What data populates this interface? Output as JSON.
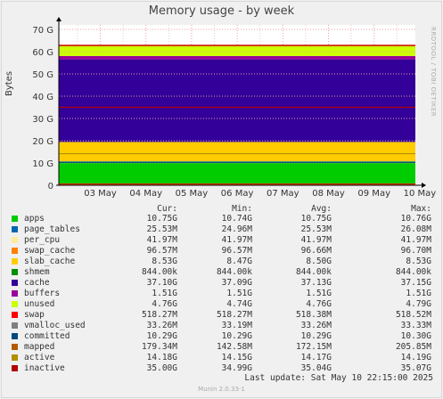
{
  "chart_data": {
    "type": "area",
    "title": "Memory usage - by week",
    "ylabel": "Bytes",
    "yticks": [
      "0",
      "10 G",
      "20 G",
      "30 G",
      "40 G",
      "50 G",
      "60 G",
      "70 G"
    ],
    "ylim": [
      0,
      72
    ],
    "xticks": [
      "03 May",
      "04 May",
      "05 May",
      "06 May",
      "07 May",
      "08 May",
      "09 May",
      "10 May"
    ],
    "stack": [
      {
        "name": "apps",
        "value": 10.75,
        "color": "#00cc00"
      },
      {
        "name": "page_tables",
        "value": 0.02553,
        "color": "#0066b3"
      },
      {
        "name": "per_cpu",
        "value": 0.04197,
        "color": "#ffeb99"
      },
      {
        "name": "swap_cache",
        "value": 0.09657,
        "color": "#ff8000"
      },
      {
        "name": "slab_cache",
        "value": 8.53,
        "color": "#ffcc00"
      },
      {
        "name": "cache",
        "value": 37.1,
        "color": "#330099"
      },
      {
        "name": "buffers",
        "value": 1.51,
        "color": "#990099"
      },
      {
        "name": "unused",
        "value": 4.76,
        "color": "#ccff00"
      }
    ],
    "lines": [
      {
        "name": "swap",
        "value": 0.518,
        "color": "#ff0000"
      },
      {
        "name": "committed",
        "value": 10.29,
        "color": "#00487d"
      },
      {
        "name": "mapped",
        "value": 0.179,
        "color": "#b35a00"
      },
      {
        "name": "active",
        "value": 14.18,
        "color": "#b38f00"
      },
      {
        "name": "inactive",
        "value": 35.0,
        "color": "#b30000"
      }
    ]
  },
  "side_text": "RRDTOOL / TOBI OETIKER",
  "legend": {
    "headers": {
      "cur": "Cur:",
      "min": "Min:",
      "avg": "Avg:",
      "max": "Max:"
    },
    "rows": [
      {
        "name": "apps",
        "color": "#00cc00",
        "cur": "10.75G",
        "min": "10.74G",
        "avg": "10.75G",
        "max": "10.76G"
      },
      {
        "name": "page_tables",
        "color": "#0066b3",
        "cur": "25.53M",
        "min": "24.96M",
        "avg": "25.53M",
        "max": "26.08M"
      },
      {
        "name": "per_cpu",
        "color": "#ffeb99",
        "cur": "41.97M",
        "min": "41.97M",
        "avg": "41.97M",
        "max": "41.97M"
      },
      {
        "name": "swap_cache",
        "color": "#ff8000",
        "cur": "96.57M",
        "min": "96.57M",
        "avg": "96.66M",
        "max": "96.70M"
      },
      {
        "name": "slab_cache",
        "color": "#ffcc00",
        "cur": "8.53G",
        "min": "8.47G",
        "avg": "8.50G",
        "max": "8.53G"
      },
      {
        "name": "shmem",
        "color": "#008f00",
        "cur": "844.00k",
        "min": "844.00k",
        "avg": "844.00k",
        "max": "844.00k"
      },
      {
        "name": "cache",
        "color": "#330099",
        "cur": "37.10G",
        "min": "37.09G",
        "avg": "37.13G",
        "max": "37.15G"
      },
      {
        "name": "buffers",
        "color": "#990099",
        "cur": "1.51G",
        "min": "1.51G",
        "avg": "1.51G",
        "max": "1.51G"
      },
      {
        "name": "unused",
        "color": "#ccff00",
        "cur": "4.76G",
        "min": "4.74G",
        "avg": "4.76G",
        "max": "4.79G"
      },
      {
        "name": "swap",
        "color": "#ff0000",
        "cur": "518.27M",
        "min": "518.27M",
        "avg": "518.38M",
        "max": "518.52M"
      },
      {
        "name": "vmalloc_used",
        "color": "#808080",
        "cur": "33.26M",
        "min": "33.19M",
        "avg": "33.26M",
        "max": "33.33M"
      },
      {
        "name": "committed",
        "color": "#00487d",
        "cur": "10.29G",
        "min": "10.29G",
        "avg": "10.29G",
        "max": "10.30G"
      },
      {
        "name": "mapped",
        "color": "#b35a00",
        "cur": "179.34M",
        "min": "142.58M",
        "avg": "172.15M",
        "max": "205.85M"
      },
      {
        "name": "active",
        "color": "#b38f00",
        "cur": "14.18G",
        "min": "14.15G",
        "avg": "14.17G",
        "max": "14.19G"
      },
      {
        "name": "inactive",
        "color": "#b30000",
        "cur": "35.00G",
        "min": "34.99G",
        "avg": "35.04G",
        "max": "35.07G"
      }
    ]
  },
  "last_update": "Last update:  Sat May 10 22:15:00 2025",
  "version": "Munin 2.0.33-1"
}
